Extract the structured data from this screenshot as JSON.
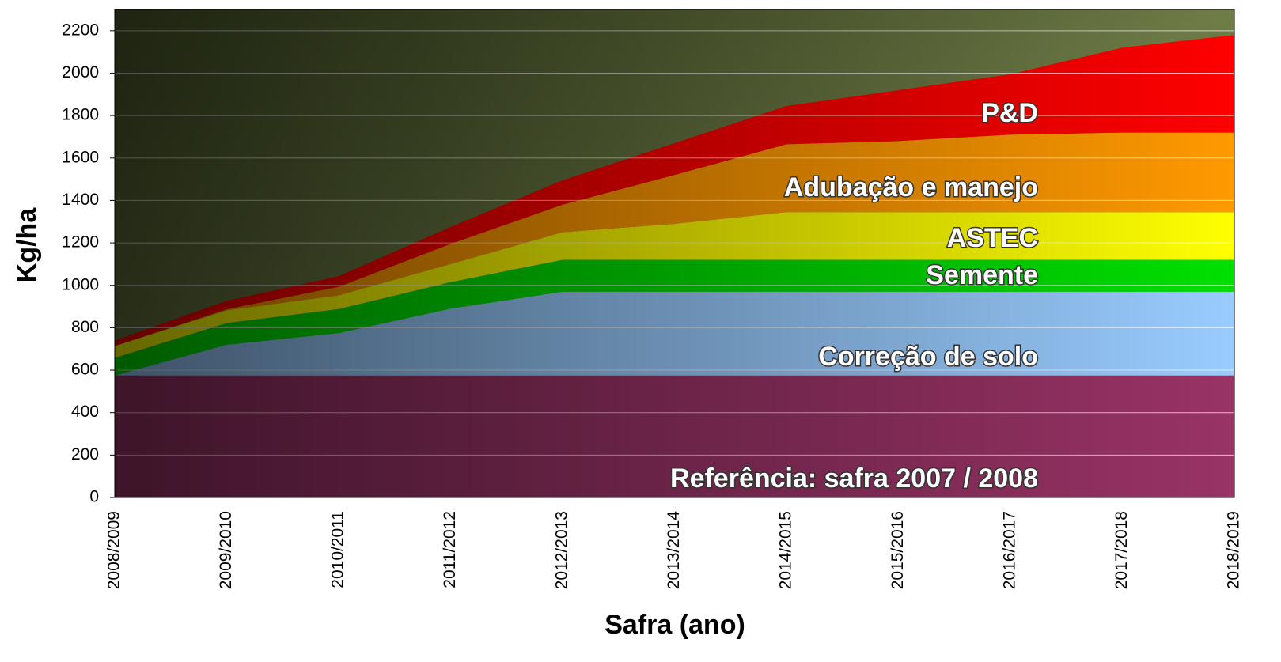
{
  "chart_data": {
    "type": "stacked_area",
    "xlabel": "Safra (ano)",
    "ylabel": "Kg/ha",
    "categories": [
      "2008/2009",
      "2009/2010",
      "2010/2011",
      "2011/2012",
      "2012/2013",
      "2013/2014",
      "2014/2015",
      "2015/2016",
      "2016/2017",
      "2017/2018",
      "2018/2019"
    ],
    "series": [
      {
        "name": "Referência: safra 2007 / 2008",
        "color": "#993366",
        "values": [
          575,
          575,
          575,
          575,
          575,
          575,
          575,
          575,
          575,
          575,
          575
        ]
      },
      {
        "name": "Correção de solo",
        "color": "#99ccff",
        "values": [
          0,
          145,
          200,
          315,
          395,
          395,
          395,
          395,
          395,
          395,
          395
        ]
      },
      {
        "name": "Semente",
        "color": "#00e000",
        "values": [
          83,
          102,
          113,
          125,
          150,
          150,
          150,
          150,
          150,
          150,
          150
        ]
      },
      {
        "name": "ASTEC",
        "color": "#ffff00",
        "values": [
          56,
          60,
          65,
          85,
          130,
          170,
          225,
          225,
          225,
          225,
          225
        ]
      },
      {
        "name": "Adubação e manejo",
        "color": "#ff9900",
        "values": [
          0,
          5,
          40,
          95,
          130,
          230,
          320,
          335,
          365,
          375,
          375
        ]
      },
      {
        "name": "P&D",
        "color": "#ff0000",
        "values": [
          25,
          40,
          50,
          80,
          115,
          150,
          180,
          240,
          285,
          400,
          460
        ]
      }
    ],
    "ylim": [
      0,
      2300
    ],
    "yticks": [
      0,
      200,
      400,
      600,
      800,
      1000,
      1200,
      1400,
      1600,
      1800,
      2000,
      2200
    ],
    "grid": true
  }
}
